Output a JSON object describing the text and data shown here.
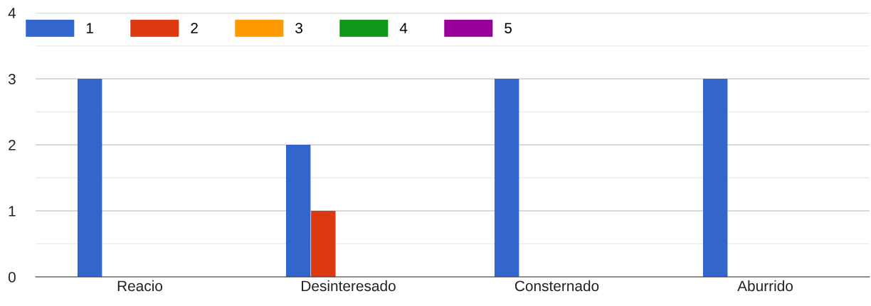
{
  "chart_data": {
    "type": "bar",
    "categories": [
      "Reacio",
      "Desinteresado",
      "Consternado",
      "Aburrido"
    ],
    "series": [
      {
        "name": "1",
        "color": "#3366cc",
        "values": [
          3,
          2,
          3,
          3
        ]
      },
      {
        "name": "2",
        "color": "#dc3912",
        "values": [
          0,
          1,
          0,
          0
        ]
      },
      {
        "name": "3",
        "color": "#ff9900",
        "values": [
          0,
          0,
          0,
          0
        ]
      },
      {
        "name": "4",
        "color": "#109618",
        "values": [
          0,
          0,
          0,
          0
        ]
      },
      {
        "name": "5",
        "color": "#990099",
        "values": [
          0,
          0,
          0,
          0
        ]
      }
    ],
    "ylim": [
      0,
      4
    ],
    "yticks": [
      0,
      {
        "value": 0.5,
        "label": null
      },
      1,
      {
        "value": 1.5,
        "label": null
      },
      2,
      {
        "value": 2.5,
        "label": null
      },
      3,
      {
        "value": 3.5,
        "label": null
      },
      4
    ],
    "grid": "y",
    "legend": "top left"
  }
}
